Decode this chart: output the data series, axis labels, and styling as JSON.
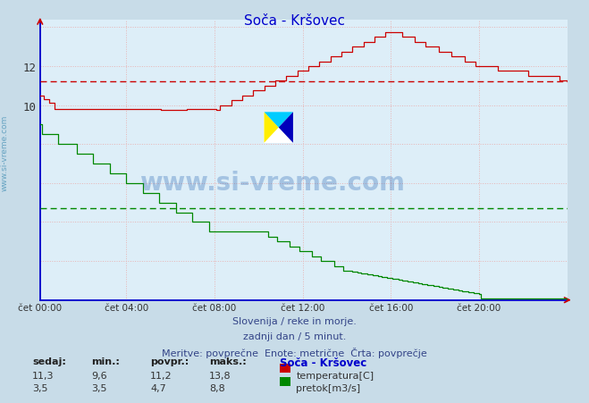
{
  "title": "Soča - Kršovec",
  "title_color": "#0000cc",
  "fig_bg_color": "#c8dce8",
  "plot_bg_color": "#ddeef8",
  "grid_color": "#e8b4b4",
  "axis_color": "#0000cc",
  "temp_color": "#cc0000",
  "flow_color": "#008800",
  "avg_temp": 11.2,
  "avg_flow": 4.7,
  "xlabels": [
    "čet 00:00",
    "čet 04:00",
    "čet 08:00",
    "čet 12:00",
    "čet 16:00",
    "čet 20:00"
  ],
  "xtick_positions_norm": [
    0.0,
    0.1667,
    0.3333,
    0.5,
    0.6667,
    0.8333
  ],
  "total_points": 288,
  "ylim_min": 0,
  "ylim_max": 14.4,
  "temp_sedaj": "11,3",
  "temp_min": "9,6",
  "temp_povpr": "11,2",
  "temp_maks": "13,8",
  "flow_sedaj": "3,5",
  "flow_min": "3,5",
  "flow_povpr": "4,7",
  "flow_maks": "8,8",
  "footer_line1": "Slovenija / reke in morje.",
  "footer_line2": "zadnji dan / 5 minut.",
  "footer_line3": "Meritve: povprečne  Enote: metrične  Črta: povprečje",
  "watermark": "www.si-vreme.com",
  "sidebar": "www.si-vreme.com",
  "legend_title": "Soča - Kršovec",
  "legend_temp": "temperatura[C]",
  "legend_flow": "pretok[m3/s]",
  "label_sedaj": "sedaj:",
  "label_min": "min.:",
  "label_povpr": "povpr.:",
  "label_maks": "maks.:"
}
